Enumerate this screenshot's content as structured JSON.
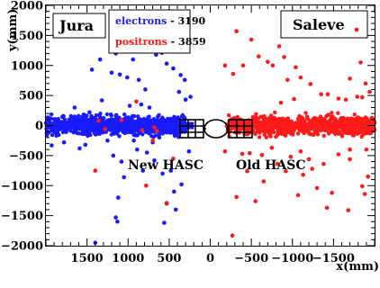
{
  "chart_data": {
    "type": "scatter",
    "xlabel": "x(mm)",
    "ylabel": "y(mm)",
    "xlim": [
      2000,
      -2000
    ],
    "ylim": [
      -2000,
      2000
    ],
    "x_reversed": true,
    "xticks": [
      1500,
      1000,
      500,
      0,
      -500,
      -1000,
      -1500
    ],
    "xtick_labels": [
      "1500",
      "1000",
      "500",
      "0",
      "−500",
      "−1000",
      "−1500"
    ],
    "yticks": [
      2000,
      1500,
      1000,
      500,
      0,
      -500,
      -1000,
      -1500,
      -2000
    ],
    "ytick_labels": [
      "2000",
      "1500",
      "1000",
      "500",
      "0",
      "−500",
      "−1000",
      "−1500",
      "−2000"
    ],
    "grid": false,
    "legend_position": "top-center",
    "series": [
      {
        "name": "electrons",
        "count_label": "3190",
        "color": "#1a1aff",
        "points": [
          [
            1830,
            1660
          ],
          [
            1450,
            1520
          ],
          [
            1340,
            1100
          ],
          [
            1440,
            930
          ],
          [
            1200,
            880
          ],
          [
            1150,
            1200
          ],
          [
            1100,
            850
          ],
          [
            1010,
            800
          ],
          [
            940,
            1100
          ],
          [
            880,
            1590
          ],
          [
            760,
            1440
          ],
          [
            760,
            1350
          ],
          [
            870,
            760
          ],
          [
            790,
            600
          ],
          [
            610,
            1380
          ],
          [
            590,
            1210
          ],
          [
            530,
            1030
          ],
          [
            660,
            1180
          ],
          [
            450,
            1480
          ],
          [
            450,
            950
          ],
          [
            380,
            1460
          ],
          [
            360,
            840
          ],
          [
            310,
            760
          ],
          [
            380,
            560
          ],
          [
            240,
            480
          ],
          [
            1250,
            -250
          ],
          [
            1180,
            -500
          ],
          [
            1080,
            -600
          ],
          [
            1050,
            -860
          ],
          [
            1120,
            -1200
          ],
          [
            890,
            -400
          ],
          [
            930,
            -250
          ],
          [
            820,
            -750
          ],
          [
            770,
            -450
          ],
          [
            680,
            -580
          ],
          [
            700,
            -280
          ],
          [
            580,
            -800
          ],
          [
            530,
            -1300
          ],
          [
            480,
            -750
          ],
          [
            440,
            -1100
          ],
          [
            350,
            -980
          ],
          [
            420,
            -1400
          ],
          [
            560,
            -1620
          ],
          [
            1150,
            -1530
          ],
          [
            1130,
            -1600
          ],
          [
            1400,
            -1950
          ],
          [
            620,
            -200
          ],
          [
            1780,
            -280
          ],
          [
            1650,
            300
          ],
          [
            1590,
            -380
          ],
          [
            1470,
            220
          ],
          [
            1320,
            420
          ],
          [
            1520,
            -320
          ],
          [
            980,
            330
          ],
          [
            840,
            350
          ],
          [
            740,
            300
          ],
          [
            1930,
            -330
          ],
          [
            260,
            -430
          ],
          [
            300,
            430
          ]
        ]
      },
      {
        "name": "positrons",
        "count_label": "3859",
        "color": "#ff1a1a",
        "points": [
          [
            -180,
            1000
          ],
          [
            -280,
            860
          ],
          [
            -320,
            1570
          ],
          [
            -400,
            1000
          ],
          [
            -500,
            1430
          ],
          [
            -590,
            1150
          ],
          [
            -700,
            1060
          ],
          [
            -760,
            1000
          ],
          [
            -840,
            1320
          ],
          [
            -900,
            1140
          ],
          [
            -940,
            760
          ],
          [
            -1040,
            970
          ],
          [
            -1100,
            800
          ],
          [
            -1220,
            690
          ],
          [
            -1350,
            520
          ],
          [
            -1480,
            1540
          ],
          [
            -1560,
            450
          ],
          [
            -1700,
            780
          ],
          [
            -1830,
            1050
          ],
          [
            -1890,
            700
          ],
          [
            -1940,
            560
          ],
          [
            -1850,
            470
          ],
          [
            -1900,
            -400
          ],
          [
            -1700,
            -560
          ],
          [
            -1560,
            -480
          ],
          [
            -1380,
            -640
          ],
          [
            -1240,
            -720
          ],
          [
            -1130,
            -820
          ],
          [
            -1300,
            -1040
          ],
          [
            -1480,
            -1120
          ],
          [
            -1680,
            -1410
          ],
          [
            -1420,
            -1370
          ],
          [
            -1070,
            -1160
          ],
          [
            -920,
            -760
          ],
          [
            -820,
            -640
          ],
          [
            -650,
            -930
          ],
          [
            -450,
            -760
          ],
          [
            -320,
            -1190
          ],
          [
            -550,
            -1260
          ],
          [
            -270,
            -1830
          ],
          [
            -630,
            -490
          ],
          [
            -480,
            -460
          ],
          [
            -390,
            -470
          ],
          [
            -180,
            -430
          ],
          [
            -750,
            -370
          ],
          [
            -1850,
            -1010
          ],
          [
            -1880,
            -1140
          ],
          [
            -1920,
            -850
          ],
          [
            -1700,
            -400
          ],
          [
            -1200,
            -560
          ],
          [
            -1100,
            -430
          ],
          [
            -980,
            -520
          ],
          [
            -1790,
            480
          ],
          [
            -1650,
            430
          ],
          [
            -1430,
            520
          ],
          [
            -1020,
            440
          ],
          [
            -860,
            380
          ],
          [
            1360,
            80
          ],
          [
            1280,
            -60
          ],
          [
            1080,
            90
          ],
          [
            830,
            -80
          ],
          [
            650,
            -90
          ],
          [
            900,
            400
          ],
          [
            700,
            -250
          ],
          [
            680,
            -30
          ],
          [
            1400,
            -750
          ],
          [
            780,
            -1000
          ],
          [
            530,
            -1290
          ],
          [
            450,
            -550
          ]
        ]
      }
    ]
  },
  "labels": {
    "left_panel": "Jura",
    "right_panel": "Saleve",
    "new_hasc": "New HASC",
    "old_hasc": "Old HASC"
  },
  "legend": {
    "electrons_name": "electrons",
    "electrons_dash": " - ",
    "electrons_count": "3190",
    "positrons_name": "positrons",
    "positrons_dash": " - ",
    "positrons_count": "3859"
  },
  "colors": {
    "electron": "#1a1aff",
    "positron": "#ff1a1a"
  }
}
